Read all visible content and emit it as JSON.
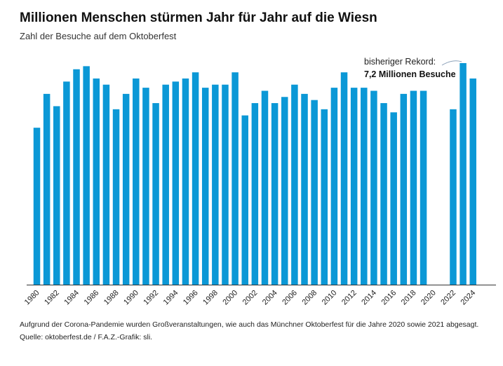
{
  "chart_data": {
    "type": "bar",
    "title": "Millionen Menschen stürmen Jahr für Jahr auf die Wiesn",
    "subtitle": "Zahl der Besuche auf dem Oktoberfest",
    "xlabel": "",
    "ylabel": "",
    "unit": "Millionen",
    "categories": [
      1980,
      1981,
      1982,
      1983,
      1984,
      1985,
      1986,
      1987,
      1988,
      1989,
      1990,
      1991,
      1992,
      1993,
      1994,
      1995,
      1996,
      1997,
      1998,
      1999,
      2000,
      2001,
      2002,
      2003,
      2004,
      2005,
      2006,
      2007,
      2008,
      2009,
      2010,
      2011,
      2012,
      2013,
      2014,
      2015,
      2016,
      2017,
      2018,
      2019,
      2020,
      2021,
      2022,
      2023,
      2024
    ],
    "values": [
      5.1,
      6.2,
      5.8,
      6.6,
      7.0,
      7.1,
      6.7,
      6.5,
      5.7,
      6.2,
      6.7,
      6.4,
      5.9,
      6.5,
      6.6,
      6.7,
      6.9,
      6.4,
      6.5,
      6.5,
      6.9,
      5.5,
      5.9,
      6.3,
      5.9,
      6.1,
      6.5,
      6.2,
      6.0,
      5.7,
      6.4,
      6.9,
      6.4,
      6.4,
      6.3,
      5.9,
      5.6,
      6.2,
      6.3,
      6.3,
      null,
      null,
      5.7,
      7.2,
      6.7
    ],
    "tick_labels": [
      "1980",
      "1982",
      "1984",
      "1986",
      "1988",
      "1990",
      "1992",
      "1994",
      "1996",
      "1998",
      "2000",
      "2002",
      "2004",
      "2006",
      "2008",
      "2010",
      "2012",
      "2014",
      "2016",
      "2018",
      "2020",
      "2022",
      "2024"
    ],
    "ylim": [
      0,
      7.2
    ],
    "grid": false,
    "bar_color": "#0b98d6",
    "annotation": {
      "line1": "bisheriger Rekord:",
      "line2": "7,2 Millionen Besuche",
      "year": 2023
    }
  },
  "footnote": "Aufgrund der Corona-Pandemie wurden Großveranstaltungen, wie auch das Münchner Oktoberfest für die Jahre 2020 sowie 2021 abgesagt.",
  "source": "Quelle: oktoberfest.de / F.A.Z.-Grafik: sli."
}
